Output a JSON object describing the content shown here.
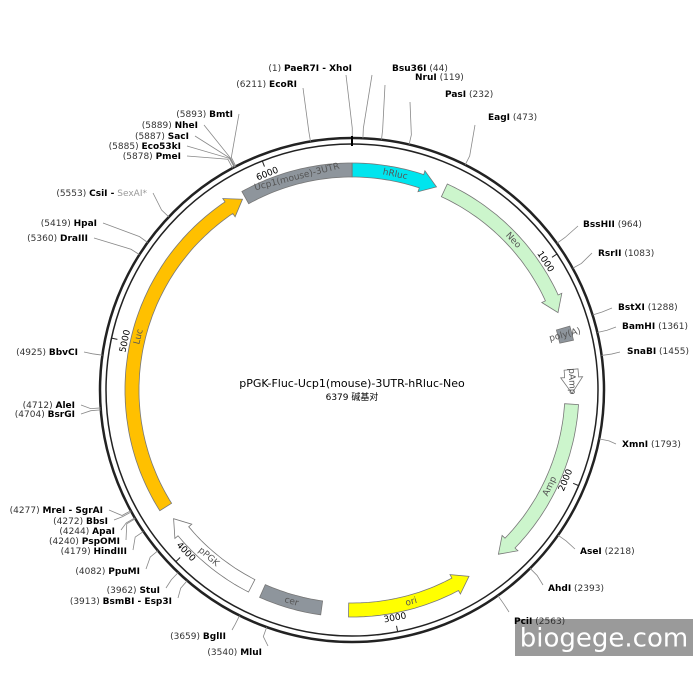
{
  "title": "pPGK-Fluc-Ucp1(mouse)-3UTR-hRluc-Neo",
  "length": 6379,
  "length_unit": "碱基对",
  "watermark": "biogege.com",
  "ticks": [
    1000,
    2000,
    3000,
    4000,
    5000,
    6000
  ],
  "features": [
    {
      "name": "hRluc",
      "start": 1,
      "end": 400,
      "direction": "forward",
      "color": "#00e5ee"
    },
    {
      "name": "Neo",
      "start": 440,
      "end": 1230,
      "direction": "forward",
      "color": "#ccf5cc"
    },
    {
      "name": "poly(A)",
      "start": 1305,
      "end": 1370,
      "direction": "none",
      "color": "#8e959c"
    },
    {
      "name": "pAmp",
      "start": 1500,
      "end": 1610,
      "direction": "forward",
      "color": "#ffffff"
    },
    {
      "name": "Amp",
      "start": 1660,
      "end": 2450,
      "direction": "forward",
      "color": "#ccf5cc"
    },
    {
      "name": "ori",
      "start": 2620,
      "end": 3205,
      "direction": "reverse",
      "color": "#ffff00"
    },
    {
      "name": "cer",
      "start": 3330,
      "end": 3615,
      "direction": "none",
      "color": "#8e959c"
    },
    {
      "name": "pPGK",
      "start": 3670,
      "end": 4150,
      "direction": "forward",
      "color": "#ffffff"
    },
    {
      "name": "Luc",
      "start": 4215,
      "end": 5850,
      "direction": "forward",
      "color": "#ffc000"
    },
    {
      "name": "Ucp1(mouse)-3UTR",
      "start": 5865,
      "end": 6379,
      "direction": "none",
      "color": "#8e959c"
    }
  ],
  "sites": [
    {
      "name": "PaeR7I - XhoI",
      "pos": {
        "value": 1,
        "label": "(1)"
      }
    },
    {
      "name": "Bsu36I",
      "pos": {
        "value": 44,
        "label": "(44)"
      }
    },
    {
      "name": "NruI",
      "pos": {
        "value": 119,
        "label": "(119)"
      }
    },
    {
      "name": "PasI",
      "pos": {
        "value": 232,
        "label": "(232)"
      }
    },
    {
      "name": "EagI",
      "pos": {
        "value": 473,
        "label": "(473)"
      }
    },
    {
      "name": "BssHII",
      "pos": {
        "value": 964,
        "label": "(964)"
      }
    },
    {
      "name": "RsrII",
      "pos": {
        "value": 1083,
        "label": "(1083)"
      }
    },
    {
      "name": "BstXI",
      "pos": {
        "value": 1288,
        "label": "(1288)"
      }
    },
    {
      "name": "BamHI",
      "pos": {
        "value": 1361,
        "label": "(1361)"
      }
    },
    {
      "name": "SnaBI",
      "pos": {
        "value": 1455,
        "label": "(1455)"
      }
    },
    {
      "name": "XmnI",
      "pos": {
        "value": 1793,
        "label": "(1793)"
      }
    },
    {
      "name": "AseI",
      "pos": {
        "value": 2218,
        "label": "(2218)"
      }
    },
    {
      "name": "AhdI",
      "pos": {
        "value": 2393,
        "label": "(2393)"
      }
    },
    {
      "name": "PciI",
      "pos": {
        "value": 2563,
        "label": "(2563)"
      }
    },
    {
      "name": "MluI",
      "pos": {
        "value": 3540,
        "label": "(3540)"
      }
    },
    {
      "name": "BglII",
      "pos": {
        "value": 3659,
        "label": "(3659)"
      }
    },
    {
      "name": "BsmBI - Esp3I",
      "pos": {
        "value": 3913,
        "label": "(3913)"
      }
    },
    {
      "name": "StuI",
      "pos": {
        "value": 3962,
        "label": "(3962)"
      }
    },
    {
      "name": "PpuMI",
      "pos": {
        "value": 4082,
        "label": "(4082)"
      }
    },
    {
      "name": "HindIII",
      "pos": {
        "value": 4179,
        "label": "(4179)"
      }
    },
    {
      "name": "PspOMI",
      "pos": {
        "value": 4240,
        "label": "(4240)"
      }
    },
    {
      "name": "ApaI",
      "pos": {
        "value": 4244,
        "label": "(4244)"
      }
    },
    {
      "name": "BbsI",
      "pos": {
        "value": 4272,
        "label": "(4272)"
      }
    },
    {
      "name": "MreI - SgrAI",
      "pos": {
        "value": 4277,
        "label": "(4277)"
      }
    },
    {
      "name": "BsrGI",
      "pos": {
        "value": 4704,
        "label": "(4704)"
      }
    },
    {
      "name": "AleI",
      "pos": {
        "value": 4712,
        "label": "(4712)"
      }
    },
    {
      "name": "BbvCI",
      "pos": {
        "value": 4925,
        "label": "(4925)"
      }
    },
    {
      "name": "DraIII",
      "pos": {
        "value": 5360,
        "label": "(5360)"
      }
    },
    {
      "name": "HpaI",
      "pos": {
        "value": 5419,
        "label": "(5419)"
      }
    },
    {
      "name": "CsiI -",
      "grey_name": "SexAI*",
      "pos": {
        "value": 5553,
        "label": "(5553)"
      }
    },
    {
      "name": "PmeI",
      "pos": {
        "value": 5878,
        "label": "(5878)"
      }
    },
    {
      "name": "Eco53kI",
      "pos": {
        "value": 5885,
        "label": "(5885)"
      }
    },
    {
      "name": "SacI",
      "pos": {
        "value": 5887,
        "label": "(5887)"
      }
    },
    {
      "name": "NheI",
      "pos": {
        "value": 5889,
        "label": "(5889)"
      }
    },
    {
      "name": "BmtI",
      "pos": {
        "value": 5893,
        "label": "(5893)"
      }
    },
    {
      "name": "EcoRI",
      "pos": {
        "value": 6211,
        "label": "(6211)"
      }
    }
  ]
}
